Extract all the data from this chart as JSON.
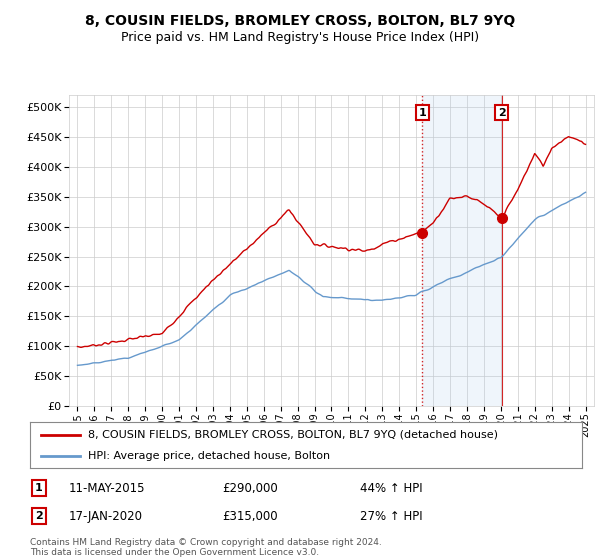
{
  "title": "8, COUSIN FIELDS, BROMLEY CROSS, BOLTON, BL7 9YQ",
  "subtitle": "Price paid vs. HM Land Registry's House Price Index (HPI)",
  "legend_line1": "8, COUSIN FIELDS, BROMLEY CROSS, BOLTON, BL7 9YQ (detached house)",
  "legend_line2": "HPI: Average price, detached house, Bolton",
  "annotation1_label": "1",
  "annotation1_date": "11-MAY-2015",
  "annotation1_price": "£290,000",
  "annotation1_hpi": "44% ↑ HPI",
  "annotation2_label": "2",
  "annotation2_date": "17-JAN-2020",
  "annotation2_price": "£315,000",
  "annotation2_hpi": "27% ↑ HPI",
  "marker1_x": 2015.36,
  "marker2_x": 2020.05,
  "sale1_price": 290000,
  "sale2_price": 315000,
  "red_color": "#cc0000",
  "blue_color": "#6699cc",
  "shade_color": "#ddeeff",
  "background_color": "#ffffff",
  "grid_color": "#cccccc",
  "ylim_min": 0,
  "ylim_max": 520000,
  "xlim_min": 1994.5,
  "xlim_max": 2025.5,
  "footer": "Contains HM Land Registry data © Crown copyright and database right 2024.\nThis data is licensed under the Open Government Licence v3.0."
}
